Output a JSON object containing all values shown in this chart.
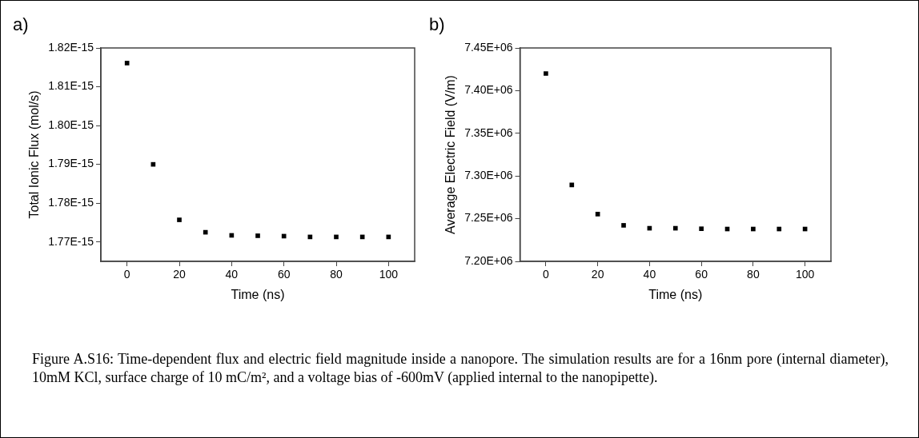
{
  "chart_data": [
    {
      "type": "scatter",
      "xlabel": "Time (ns)",
      "ylabel": "Total Ionic Flux (mol/s)",
      "annotations": [
        "a)",
        "Figure A.S16: Time-dependent flux and electric field magnitude inside a nanopore. The simulation results are for a 16nm pore (internal diameter), 10mM KCl, surface charge of 10 mC/m², and a voltage bias of -600mV (applied internal to the nanopipette)."
      ],
      "x": [
        0,
        10,
        20,
        30,
        40,
        50,
        60,
        70,
        80,
        90,
        100
      ],
      "series": [
        {
          "color": "#000000",
          "values": [
            1.8161e-15,
            1.79e-15,
            1.7757e-15,
            1.7725e-15,
            1.7717e-15,
            1.7716e-15,
            1.7715e-15,
            1.7713e-15,
            1.7713e-15,
            1.7713e-15,
            1.7713e-15
          ]
        }
      ],
      "xlim": [
        -10,
        110
      ],
      "xticks": [
        0,
        20,
        40,
        60,
        80,
        100
      ],
      "ylim": [
        1.765e-15,
        1.82e-15
      ],
      "yticks": [
        {
          "value": 1.77e-15,
          "label": "1.77E-15"
        },
        {
          "value": 1.78e-15,
          "label": "1.78E-15"
        },
        {
          "value": 1.79e-15,
          "label": "1.79E-15"
        },
        {
          "value": 1.8e-15,
          "label": "1.80E-15"
        },
        {
          "value": 1.81e-15,
          "label": "1.81E-15"
        },
        {
          "value": 1.82e-15,
          "label": "1.82E-15"
        }
      ],
      "marker": "square",
      "grid": false,
      "legend": false
    },
    {
      "type": "scatter",
      "xlabel": "Time (ns)",
      "ylabel": "Average Electric Field (V/m)",
      "annotations": [
        "b)"
      ],
      "x": [
        0,
        10,
        20,
        30,
        40,
        50,
        60,
        70,
        80,
        90,
        100
      ],
      "series": [
        {
          "color": "#000000",
          "values": [
            7420000.0,
            7289600.0,
            7255300.0,
            7242200.0,
            7238800.0,
            7238800.0,
            7238200.0,
            7237900.0,
            7237900.0,
            7237900.0,
            7237900.0
          ]
        }
      ],
      "xlim": [
        -10,
        110
      ],
      "xticks": [
        0,
        20,
        40,
        60,
        80,
        100
      ],
      "ylim": [
        7200000.0,
        7450000.0
      ],
      "yticks": [
        {
          "value": 7200000.0,
          "label": "7.20E+06"
        },
        {
          "value": 7250000.0,
          "label": "7.25E+06"
        },
        {
          "value": 7300000.0,
          "label": "7.30E+06"
        },
        {
          "value": 7350000.0,
          "label": "7.35E+06"
        },
        {
          "value": 7400000.0,
          "label": "7.40E+06"
        },
        {
          "value": 7450000.0,
          "label": "7.45E+06"
        }
      ],
      "marker": "square",
      "grid": false,
      "legend": false
    }
  ]
}
